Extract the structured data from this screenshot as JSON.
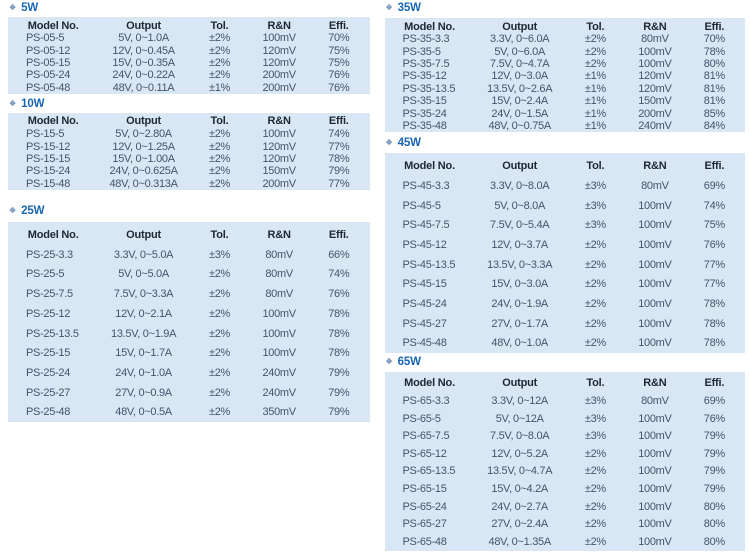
{
  "colors": {
    "table_background": "#d9e7f4",
    "title_blue": "#1a66b0",
    "header_text": "#1e2734",
    "data_text": "#45536b",
    "bullet_blue": "#7f9dc0"
  },
  "bullet_glyph": "❖",
  "columns": [
    "Model No.",
    "Output",
    "Tol.",
    "R&N",
    "Effi."
  ],
  "sections": [
    {
      "title": "5W",
      "column": "left",
      "density": "compact",
      "title_margins": [
        "mt-1",
        "mb-3"
      ],
      "rows": [
        {
          "model": "PS-05-5",
          "output": "5V, 0~1.0A",
          "tol": "±2%",
          "rn": "100mV",
          "effi": "70%"
        },
        {
          "model": "PS-05-12",
          "output": "12V, 0~0.45A",
          "tol": "±2%",
          "rn": "120mV",
          "effi": "75%"
        },
        {
          "model": "PS-05-15",
          "output": "15V, 0~0.35A",
          "tol": "±2%",
          "rn": "120mV",
          "effi": "75%"
        },
        {
          "model": "PS-05-24",
          "output": "24V, 0~0.22A",
          "tol": "±2%",
          "rn": "200mV",
          "effi": "76%"
        },
        {
          "model": "PS-05-48",
          "output": "48V, 0~0.11A",
          "tol": "±1%",
          "rn": "200mV",
          "effi": "76%"
        }
      ]
    },
    {
      "title": "10W",
      "column": "left",
      "density": "compact",
      "title_margins": [
        "mt-4",
        "mb-3"
      ],
      "rows": [
        {
          "model": "PS-15-5",
          "output": "5V, 0~2.80A",
          "tol": "±2%",
          "rn": "100mV",
          "effi": "74%"
        },
        {
          "model": "PS-15-12",
          "output": "12V, 0~1.25A",
          "tol": "±2%",
          "rn": "120mV",
          "effi": "77%"
        },
        {
          "model": "PS-15-15",
          "output": "15V, 0~1.00A",
          "tol": "±2%",
          "rn": "120mV",
          "effi": "78%"
        },
        {
          "model": "PS-15-24",
          "output": "24V, 0~0.625A",
          "tol": "±2%",
          "rn": "150mV",
          "effi": "79%"
        },
        {
          "model": "PS-15-48",
          "output": "48V, 0~0.313A",
          "tol": "±2%",
          "rn": "200mV",
          "effi": "77%"
        }
      ]
    },
    {
      "title": "25W",
      "column": "left",
      "density": "roomy",
      "title_margins": [
        "mt-15",
        "mb-5"
      ],
      "rows": [
        {
          "model": "PS-25-3.3",
          "output": "3.3V, 0~5.0A",
          "tol": "±3%",
          "rn": "80mV",
          "effi": "66%"
        },
        {
          "model": "PS-25-5",
          "output": "5V, 0~5.0A",
          "tol": "±2%",
          "rn": "80mV",
          "effi": "74%"
        },
        {
          "model": "PS-25-7.5",
          "output": "7.5V, 0~3.3A",
          "tol": "±2%",
          "rn": "80mV",
          "effi": "76%"
        },
        {
          "model": "PS-25-12",
          "output": "12V, 0~2.1A",
          "tol": "±2%",
          "rn": "100mV",
          "effi": "78%"
        },
        {
          "model": "PS-25-13.5",
          "output": "13.5V, 0~1.9A",
          "tol": "±2%",
          "rn": "100mV",
          "effi": "78%"
        },
        {
          "model": "PS-25-15",
          "output": "15V, 0~1.7A",
          "tol": "±2%",
          "rn": "100mV",
          "effi": "78%"
        },
        {
          "model": "PS-25-24",
          "output": "24V, 0~1.0A",
          "tol": "±2%",
          "rn": "240mV",
          "effi": "79%"
        },
        {
          "model": "PS-25-27",
          "output": "27V, 0~0.9A",
          "tol": "±2%",
          "rn": "240mV",
          "effi": "79%"
        },
        {
          "model": "PS-25-48",
          "output": "48V, 0~0.5A",
          "tol": "±2%",
          "rn": "350mV",
          "effi": "79%"
        }
      ]
    },
    {
      "title": "35W",
      "column": "right",
      "density": "compact",
      "title_margins": [
        "mt-1",
        "mb-4"
      ],
      "rows": [
        {
          "model": "PS-35-3.3",
          "output": "3.3V, 0~6.0A",
          "tol": "±2%",
          "rn": "80mV",
          "effi": "70%"
        },
        {
          "model": "PS-35-5",
          "output": "5V, 0~6.0A",
          "tol": "±2%",
          "rn": "100mV",
          "effi": "78%"
        },
        {
          "model": "PS-35-7.5",
          "output": "7.5V, 0~4.7A",
          "tol": "±2%",
          "rn": "100mV",
          "effi": "80%"
        },
        {
          "model": "PS-35-12",
          "output": "12V, 0~3.0A",
          "tol": "±1%",
          "rn": "120mV",
          "effi": "81%"
        },
        {
          "model": "PS-35-13.5",
          "output": "13.5V, 0~2.6A",
          "tol": "±1%",
          "rn": "120mV",
          "effi": "81%"
        },
        {
          "model": "PS-35-15",
          "output": "15V, 0~2.4A",
          "tol": "±1%",
          "rn": "150mV",
          "effi": "81%"
        },
        {
          "model": "PS-35-24",
          "output": "24V, 0~1.5A",
          "tol": "±1%",
          "rn": "200mV",
          "effi": "85%"
        },
        {
          "model": "PS-35-48",
          "output": "48V, 0~0.75A",
          "tol": "±1%",
          "rn": "240mV",
          "effi": "84%"
        }
      ]
    },
    {
      "title": "45W",
      "column": "right",
      "density": "roomy",
      "title_margins": [
        "mt-5",
        "mb-4"
      ],
      "rows": [
        {
          "model": "PS-45-3.3",
          "output": "3.3V, 0~8.0A",
          "tol": "±3%",
          "rn": "80mV",
          "effi": "69%"
        },
        {
          "model": "PS-45-5",
          "output": "5V, 0~8.0A",
          "tol": "±3%",
          "rn": "100mV",
          "effi": "74%"
        },
        {
          "model": "PS-45-7.5",
          "output": "7.5V, 0~5.4A",
          "tol": "±3%",
          "rn": "100mV",
          "effi": "75%"
        },
        {
          "model": "PS-45-12",
          "output": "12V, 0~3.7A",
          "tol": "±2%",
          "rn": "100mV",
          "effi": "76%"
        },
        {
          "model": "PS-45-13.5",
          "output": "13.5V, 0~3.3A",
          "tol": "±2%",
          "rn": "100mV",
          "effi": "77%"
        },
        {
          "model": "PS-45-15",
          "output": "15V, 0~3.0A",
          "tol": "±2%",
          "rn": "100mV",
          "effi": "77%"
        },
        {
          "model": "PS-45-24",
          "output": "24V, 0~1.9A",
          "tol": "±2%",
          "rn": "100mV",
          "effi": "78%"
        },
        {
          "model": "PS-45-27",
          "output": "27V, 0~1.7A",
          "tol": "±2%",
          "rn": "100mV",
          "effi": "78%"
        },
        {
          "model": "PS-45-48",
          "output": "48V, 0~1.0A",
          "tol": "±2%",
          "rn": "100mV",
          "effi": "78%"
        }
      ]
    },
    {
      "title": "65W",
      "column": "right",
      "density": "medium",
      "title_margins": [
        "mt-3",
        "mb-4"
      ],
      "rows": [
        {
          "model": "PS-65-3.3",
          "output": "3.3V, 0~12A",
          "tol": "±3%",
          "rn": "80mV",
          "effi": "69%"
        },
        {
          "model": "PS-65-5",
          "output": "5V, 0~12A",
          "tol": "±3%",
          "rn": "100mV",
          "effi": "76%"
        },
        {
          "model": "PS-65-7.5",
          "output": "7.5V, 0~8.0A",
          "tol": "±3%",
          "rn": "100mV",
          "effi": "79%"
        },
        {
          "model": "PS-65-12",
          "output": "12V, 0~5.2A",
          "tol": "±2%",
          "rn": "100mV",
          "effi": "79%"
        },
        {
          "model": "PS-65-13.5",
          "output": "13.5V, 0~4.7A",
          "tol": "±2%",
          "rn": "100mV",
          "effi": "79%"
        },
        {
          "model": "PS-65-15",
          "output": "15V, 0~4.2A",
          "tol": "±2%",
          "rn": "100mV",
          "effi": "79%"
        },
        {
          "model": "PS-65-24",
          "output": "24V, 0~2.7A",
          "tol": "±2%",
          "rn": "100mV",
          "effi": "80%"
        },
        {
          "model": "PS-65-27",
          "output": "27V, 0~2.4A",
          "tol": "±2%",
          "rn": "100mV",
          "effi": "80%"
        },
        {
          "model": "PS-65-48",
          "output": "48V, 0~1.35A",
          "tol": "±2%",
          "rn": "100mV",
          "effi": "80%"
        }
      ]
    }
  ]
}
